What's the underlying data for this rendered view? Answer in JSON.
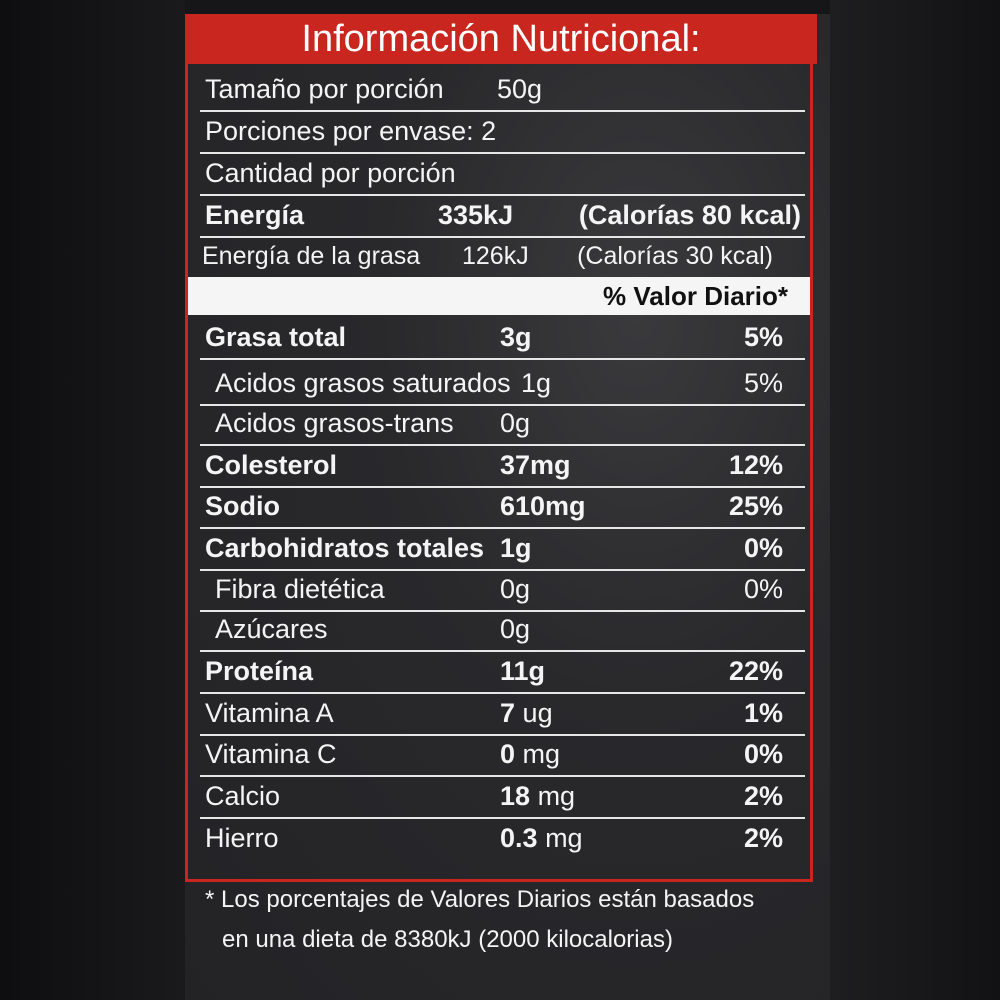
{
  "title": "Información Nutricional:",
  "serving": [
    {
      "label": "Tamaño por porción",
      "value": "50g"
    },
    {
      "label": "Porciones por envase: 2"
    },
    {
      "label": "Cantidad por porción"
    }
  ],
  "energy": {
    "label": "Energía",
    "kj": "335kJ",
    "kcal": "(Calorías 80 kcal)"
  },
  "energy_fat": {
    "label": "Energía de la grasa",
    "kj": "126kJ",
    "kcal": "(Calorías 30 kcal)"
  },
  "dv_header": "% Valor Diario*",
  "nutrients": [
    {
      "name": "Grasa total",
      "num": "3g",
      "unit": "",
      "pct": "5%",
      "bold": true,
      "sub": false
    },
    {
      "name": "Acidos grasos saturados",
      "num": "1g",
      "unit": "",
      "pct": "5%",
      "bold": false,
      "sub": true
    },
    {
      "name": "Acidos grasos-trans",
      "num": "0g",
      "unit": "",
      "pct": "",
      "bold": false,
      "sub": true
    },
    {
      "name": "Colesterol",
      "num": "37mg",
      "unit": "",
      "pct": "12%",
      "bold": true,
      "sub": false
    },
    {
      "name": "Sodio",
      "num": "610mg",
      "unit": "",
      "pct": "25%",
      "bold": true,
      "sub": false
    },
    {
      "name": "Carbohidratos totales",
      "num": "1g",
      "unit": "",
      "pct": "0%",
      "bold": true,
      "sub": false
    },
    {
      "name": "Fibra dietética",
      "num": "0g",
      "unit": "",
      "pct": "0%",
      "bold": false,
      "sub": true
    },
    {
      "name": "Azúcares",
      "num": "0g",
      "unit": "",
      "pct": "",
      "bold": false,
      "sub": true
    },
    {
      "name": "Proteína",
      "num": "11g",
      "unit": "",
      "pct": "22%",
      "bold": true,
      "sub": false
    },
    {
      "name": "Vitamina A",
      "num": "7",
      "unit": "ug",
      "pct": "1%",
      "bold": false,
      "sub": false,
      "mixed": true
    },
    {
      "name": "Vitamina C",
      "num": "0",
      "unit": "mg",
      "pct": "0%",
      "bold": false,
      "sub": false,
      "mixed": true
    },
    {
      "name": "Calcio",
      "num": "18",
      "unit": "mg",
      "pct": "2%",
      "bold": false,
      "sub": false,
      "mixed": true
    },
    {
      "name": "Hierro",
      "num": "0.3",
      "unit": "mg",
      "pct": "2%",
      "bold": false,
      "sub": false,
      "mixed": true
    }
  ],
  "footnote": [
    "* Los porcentajes de Valores Diarios están basados",
    "en una dieta de 8380kJ (2000 kilocalorias)"
  ],
  "colors": {
    "header_red": "#c8261e",
    "panel": "#29292c",
    "text": "#f4f4f4"
  }
}
